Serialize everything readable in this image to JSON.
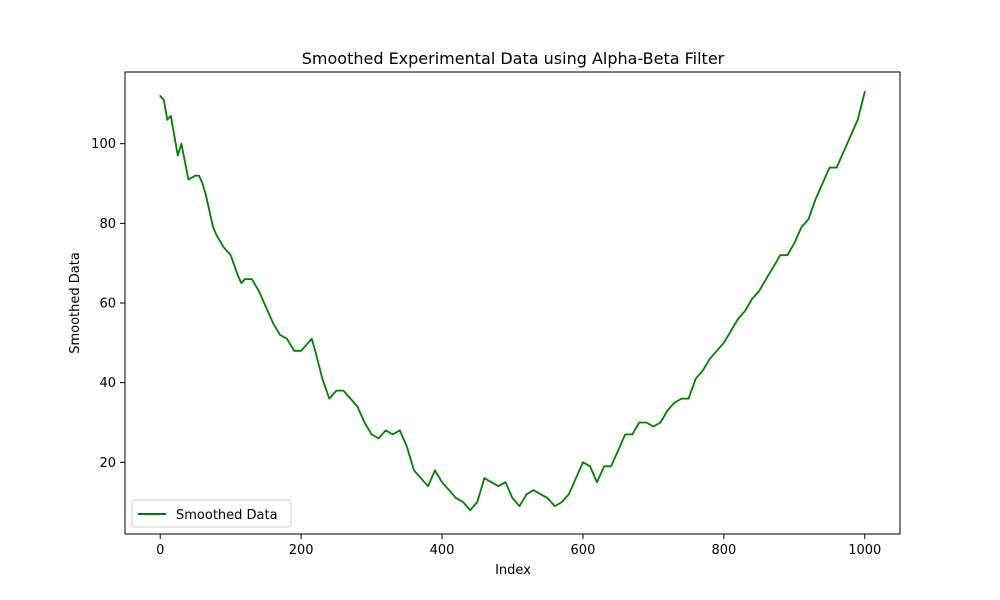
{
  "chart_data": {
    "type": "line",
    "title": "Smoothed Experimental Data using Alpha-Beta Filter",
    "xlabel": "Index",
    "ylabel": "Smoothed Data",
    "xlim": [
      -50,
      1050
    ],
    "ylim": [
      2,
      118
    ],
    "xticks": [
      0,
      200,
      400,
      600,
      800,
      1000
    ],
    "yticks": [
      20,
      40,
      60,
      80,
      100
    ],
    "grid": false,
    "legend_position": "lower-left",
    "series": [
      {
        "name": "Smoothed Data",
        "color": "#008000",
        "x": [
          0,
          5,
          10,
          15,
          20,
          25,
          30,
          40,
          50,
          55,
          60,
          65,
          70,
          75,
          80,
          90,
          100,
          110,
          115,
          120,
          130,
          140,
          150,
          160,
          170,
          180,
          190,
          200,
          210,
          215,
          220,
          230,
          240,
          250,
          260,
          270,
          280,
          290,
          300,
          310,
          320,
          330,
          340,
          350,
          360,
          370,
          380,
          390,
          400,
          410,
          420,
          430,
          440,
          450,
          460,
          470,
          480,
          490,
          500,
          510,
          520,
          530,
          540,
          550,
          560,
          570,
          580,
          590,
          600,
          610,
          620,
          630,
          640,
          650,
          660,
          670,
          680,
          690,
          700,
          710,
          720,
          730,
          740,
          750,
          760,
          770,
          780,
          790,
          800,
          810,
          820,
          830,
          840,
          850,
          860,
          870,
          880,
          890,
          900,
          910,
          920,
          930,
          940,
          950,
          960,
          970,
          980,
          990,
          1000
        ],
        "y": [
          112,
          111,
          106,
          107,
          102,
          97,
          100,
          91,
          92,
          92,
          90,
          87,
          83,
          79,
          77,
          74,
          72,
          67,
          65,
          66,
          66,
          63,
          59,
          55,
          52,
          51,
          48,
          48,
          50,
          51,
          48,
          41,
          36,
          38,
          38,
          36,
          34,
          30,
          27,
          26,
          28,
          27,
          28,
          24,
          18,
          16,
          14,
          18,
          15,
          13,
          11,
          10,
          8,
          10,
          16,
          15,
          14,
          15,
          11,
          9,
          12,
          13,
          12,
          11,
          9,
          10,
          12,
          16,
          20,
          19,
          15,
          19,
          19,
          23,
          27,
          27,
          30,
          30,
          29,
          30,
          33,
          35,
          36,
          36,
          41,
          43,
          46,
          48,
          50,
          53,
          56,
          58,
          61,
          63,
          66,
          69,
          72,
          72,
          75,
          79,
          81,
          86,
          90,
          94,
          94,
          98,
          102,
          106,
          113
        ]
      }
    ]
  }
}
